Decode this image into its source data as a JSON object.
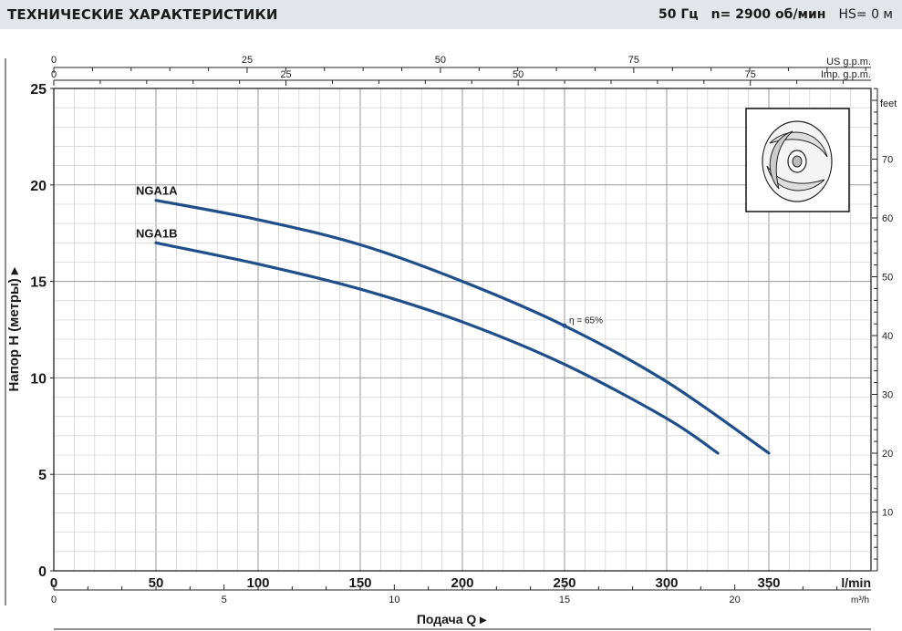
{
  "header": {
    "title": "ТЕХНИЧЕСКИЕ ХАРАКТЕРИСТИКИ",
    "frequency": "50 Гц",
    "speed": "n= 2900  об/мин",
    "hs": "HS= 0 м"
  },
  "image_alt": "impeller-icon",
  "chart_data": {
    "type": "line",
    "xlabel": "Подача Q",
    "ylabel": "Напор H  (метры)",
    "x_unit": "l/min",
    "x_ticks": [
      0,
      50,
      100,
      150,
      200,
      250,
      300,
      350
    ],
    "xlim": [
      0,
      400
    ],
    "ylim": [
      0,
      25
    ],
    "y_ticks": [
      0,
      5,
      10,
      15,
      20,
      25
    ],
    "grid": true,
    "secondary_axes": {
      "us_gpm": {
        "label": "US g.p.m.",
        "ticks": [
          0,
          25,
          50,
          75
        ]
      },
      "imp_gpm": {
        "label": "Imp. g.p.m.",
        "ticks": [
          0,
          25,
          50,
          75
        ]
      },
      "m3h": {
        "label": "m³/h",
        "ticks": [
          0,
          5,
          10,
          15,
          20
        ]
      },
      "feet": {
        "label": "feet",
        "ticks": [
          10,
          20,
          30,
          40,
          50,
          60,
          70
        ]
      }
    },
    "series": [
      {
        "name": "NGA1A",
        "x": [
          50,
          100,
          150,
          200,
          250,
          300,
          350
        ],
        "y": [
          19.2,
          18.2,
          16.9,
          15.0,
          12.7,
          9.8,
          6.1
        ]
      },
      {
        "name": "NGA1B",
        "x": [
          50,
          100,
          150,
          200,
          250,
          300,
          325
        ],
        "y": [
          17.0,
          15.9,
          14.6,
          12.9,
          10.7,
          7.9,
          6.1
        ]
      }
    ],
    "annotations": [
      {
        "text": "η = 65%",
        "x": 250,
        "y": 12.7
      }
    ]
  }
}
